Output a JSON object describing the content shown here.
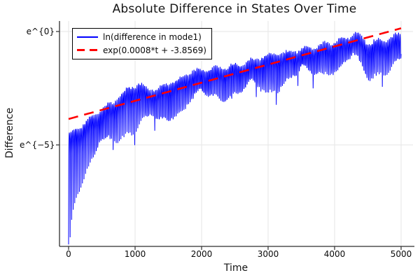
{
  "title": "Absolute Difference in States Over Time",
  "axes": {
    "x": {
      "label": "Time",
      "ticks": [
        0,
        1000,
        2000,
        3000,
        4000,
        5000
      ],
      "lim": [
        -140,
        5200
      ]
    },
    "y": {
      "label": "Difference",
      "scale": "ln",
      "ticks": [
        {
          "label": "e^{0}",
          "ln_value": 0
        },
        {
          "label": "e^{−5}",
          "ln_value": -5
        }
      ],
      "lim_ln": [
        -9.47,
        0.46
      ]
    }
  },
  "legend": {
    "items": [
      {
        "label": "ln(difference in mode1)",
        "color": "#0000ff",
        "style": "solid"
      },
      {
        "label": "exp(0.0008*t + -3.8569)",
        "color": "#ff0000",
        "style": "dashed"
      }
    ]
  },
  "colors": {
    "series_blue": "#0000ff",
    "fit_red": "#ff0000",
    "grid": "#e5e5e5",
    "axis": "#2f2f2f",
    "background": "#ffffff"
  },
  "chart_data": {
    "type": "line",
    "title": "Absolute Difference in States Over Time",
    "xlabel": "Time",
    "ylabel": "Difference",
    "x_range": [
      0,
      5000
    ],
    "series": [
      {
        "name": "ln(difference in mode1)",
        "color": "#0000ff",
        "kind": "oscillatory-log-envelope",
        "envelope_top_ln": [
          [
            0,
            -4.55
          ],
          [
            150,
            -4.25
          ],
          [
            300,
            -3.9
          ],
          [
            500,
            -3.45
          ],
          [
            700,
            -3.05
          ],
          [
            900,
            -2.5
          ],
          [
            1050,
            -2.33
          ],
          [
            1200,
            -2.52
          ],
          [
            1350,
            -2.55
          ],
          [
            1500,
            -2.28
          ],
          [
            1650,
            -2.15
          ],
          [
            1800,
            -1.82
          ],
          [
            2000,
            -1.7
          ],
          [
            2200,
            -1.62
          ],
          [
            2400,
            -1.56
          ],
          [
            2600,
            -1.42
          ],
          [
            2800,
            -1.25
          ],
          [
            3000,
            -1.05
          ],
          [
            3200,
            -0.97
          ],
          [
            3400,
            -0.85
          ],
          [
            3600,
            -0.73
          ],
          [
            3800,
            -0.6
          ],
          [
            4000,
            -0.48
          ],
          [
            4150,
            -0.32
          ],
          [
            4300,
            -0.07
          ],
          [
            4420,
            -0.28
          ],
          [
            4520,
            -0.55
          ],
          [
            4650,
            -0.38
          ],
          [
            4800,
            -0.36
          ],
          [
            4900,
            -0.22
          ],
          [
            5000,
            -0.12
          ]
        ],
        "spike_depth_ln": [
          [
            0,
            4.8
          ],
          [
            100,
            4.0
          ],
          [
            200,
            3.3
          ],
          [
            300,
            2.8
          ],
          [
            450,
            2.2
          ],
          [
            600,
            1.9
          ],
          [
            800,
            1.95
          ],
          [
            1000,
            2.15
          ],
          [
            1200,
            1.85
          ],
          [
            1500,
            1.6
          ],
          [
            1800,
            1.5
          ],
          [
            2100,
            1.45
          ],
          [
            2400,
            1.35
          ],
          [
            2700,
            1.4
          ],
          [
            3000,
            1.8
          ],
          [
            3300,
            1.35
          ],
          [
            3600,
            1.3
          ],
          [
            3900,
            1.35
          ],
          [
            4200,
            1.4
          ],
          [
            4500,
            1.6
          ],
          [
            4800,
            1.5
          ],
          [
            5000,
            1.6
          ]
        ],
        "oscillation": {
          "zero_spacing_t": 23.13,
          "sample_step_t": 2.9,
          "depth_mod_period_t": 760,
          "depth_mod_min": 0.55
        }
      },
      {
        "name": "exp(0.0008*t + -3.8569)",
        "color": "#ff0000",
        "kind": "exponential-fit",
        "slope": 0.0008,
        "intercept": -3.8569,
        "t_start": 0,
        "t_end": 5000
      }
    ]
  }
}
